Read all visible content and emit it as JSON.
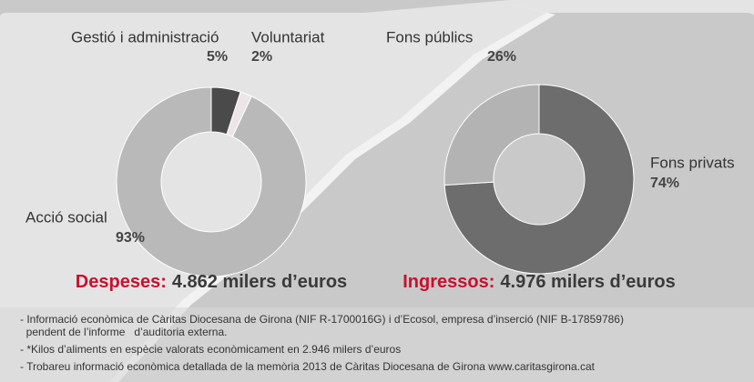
{
  "chart_data": [
    {
      "type": "donut",
      "title": "Despeses:",
      "total": "4.862 milers d’euros",
      "categories": [
        "Gestió i administració",
        "Voluntariat",
        "Acció social"
      ],
      "values": [
        5,
        2,
        93
      ],
      "value_labels": [
        "5%",
        "2%",
        "93%"
      ],
      "colors": [
        "#4a4a4a",
        "#ece4e6",
        "#b9b9b9"
      ]
    },
    {
      "type": "donut",
      "title": "Ingressos:",
      "total": "4.976 milers d’euros",
      "categories": [
        "Fons privats",
        "Fons públics"
      ],
      "values": [
        74,
        26
      ],
      "value_labels": [
        "74%",
        "26%"
      ],
      "colors": [
        "#6d6d6d",
        "#b3b3b3"
      ]
    }
  ],
  "notes": [
    "- Informació econòmica de Càritas Diocesana de Girona (NIF R-1700016G) i d’Ecosol, empresa d’inserció (NIF B-17859786)",
    "  pendent de l’informe   d’auditoria externa.",
    "- *Kilos d’aliments en espècie valorats econòmicament en 2.946 milers d’euros",
    "- Trobareu informació econòmica detallada de la memòria 2013 de Càritas Diocesana de Girona www.caritasgirona.cat"
  ]
}
